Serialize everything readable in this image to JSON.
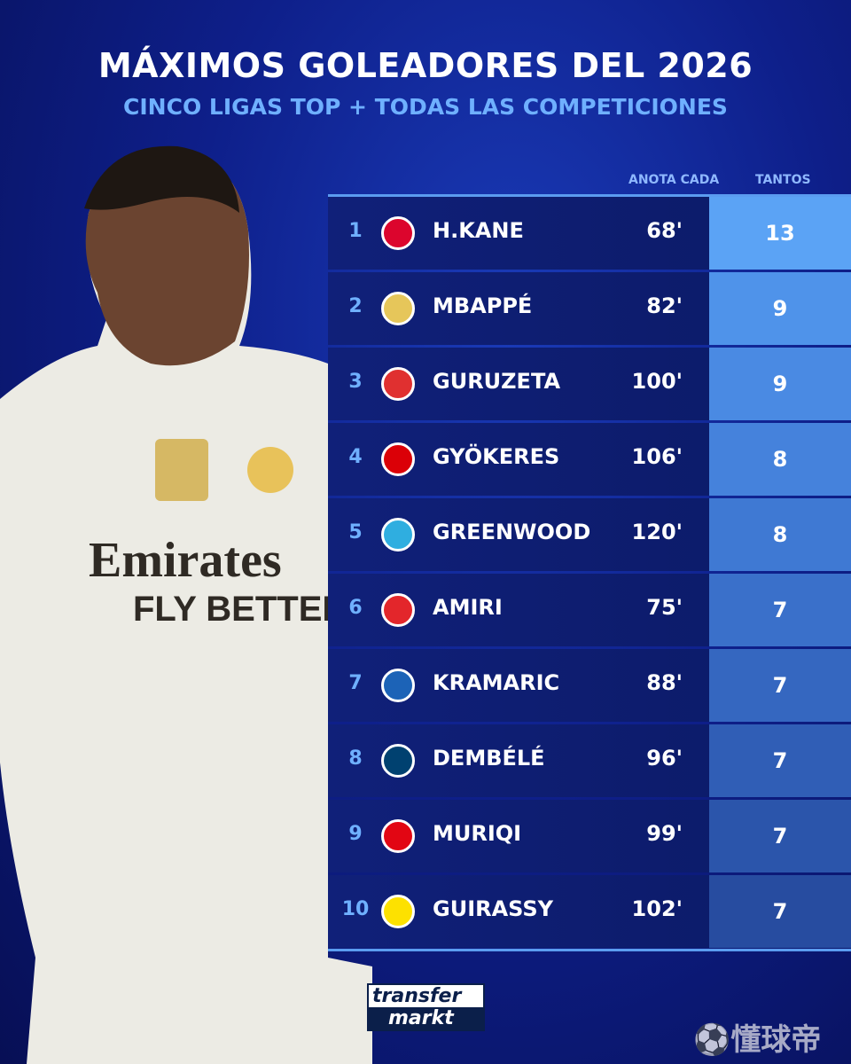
{
  "header": {
    "title": "MÁXIMOS GOLEADORES DEL 2026",
    "subtitle": "CINCO LIGAS TOP + TODAS LAS COMPETICIONES"
  },
  "table": {
    "columns": {
      "minutes": "ANOTA CADA",
      "goals": "TANTOS"
    },
    "rows": [
      {
        "rank": "1",
        "club_icon": "bayern-munich-crest",
        "player": "H.KANE",
        "minutes": "68'",
        "goals": "13",
        "logo_color": "#dc052d",
        "goals_bg": "#5ba3f5"
      },
      {
        "rank": "2",
        "club_icon": "real-madrid-crest",
        "player": "MBAPPÉ",
        "minutes": "82'",
        "goals": "9",
        "logo_color": "#e6c65a",
        "goals_bg": "#4f93ea"
      },
      {
        "rank": "3",
        "club_icon": "athletic-bilbao-crest",
        "player": "GURUZETA",
        "minutes": "100'",
        "goals": "9",
        "logo_color": "#e03030",
        "goals_bg": "#4a8ae3"
      },
      {
        "rank": "4",
        "club_icon": "arsenal-crest",
        "player": "GYÖKERES",
        "minutes": "106'",
        "goals": "8",
        "logo_color": "#db0007",
        "goals_bg": "#4582dc"
      },
      {
        "rank": "5",
        "club_icon": "marseille-crest",
        "player": "GREENWOOD",
        "minutes": "120'",
        "goals": "8",
        "logo_color": "#2faee0",
        "goals_bg": "#3f79d3"
      },
      {
        "rank": "6",
        "club_icon": "mainz-crest",
        "player": "AMIRI",
        "minutes": "75'",
        "goals": "7",
        "logo_color": "#e3262b",
        "goals_bg": "#3a70ca"
      },
      {
        "rank": "7",
        "club_icon": "hoffenheim-crest",
        "player": "KRAMARIC",
        "minutes": "88'",
        "goals": "7",
        "logo_color": "#1c63b7",
        "goals_bg": "#3567c0"
      },
      {
        "rank": "8",
        "club_icon": "psg-crest",
        "player": "DEMBÉLÉ",
        "minutes": "96'",
        "goals": "7",
        "logo_color": "#004170",
        "goals_bg": "#305eb6"
      },
      {
        "rank": "9",
        "club_icon": "mallorca-crest",
        "player": "MURIQI",
        "minutes": "99'",
        "goals": "7",
        "logo_color": "#e20613",
        "goals_bg": "#2b55ab"
      },
      {
        "rank": "10",
        "club_icon": "dortmund-crest",
        "player": "GUIRASSY",
        "minutes": "102'",
        "goals": "7",
        "logo_color": "#fde100",
        "goals_bg": "#274ca0"
      }
    ]
  },
  "brand": {
    "logo_top": "transfer",
    "logo_bottom": "markt",
    "watermark": "懂球帝"
  }
}
